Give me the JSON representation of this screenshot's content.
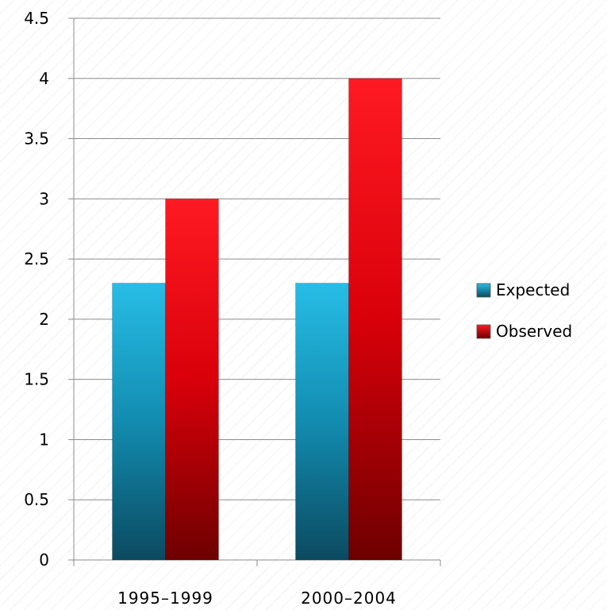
{
  "chart_data": {
    "type": "bar",
    "categories": [
      "1995–1999",
      "2000–2004"
    ],
    "series": [
      {
        "name": "Expected",
        "values": [
          2.3,
          2.3
        ],
        "color": "#1a9fc9"
      },
      {
        "name": "Observed",
        "values": [
          3.0,
          4.0
        ],
        "color": "#e0111a"
      }
    ],
    "ylim": [
      0,
      4.5
    ],
    "yticks": [
      "0",
      "0.5",
      "1",
      "1.5",
      "2",
      "2.5",
      "3",
      "3.5",
      "4",
      "4.5"
    ],
    "grid": true,
    "legend_position": "right",
    "title": "",
    "xlabel": "",
    "ylabel": ""
  }
}
